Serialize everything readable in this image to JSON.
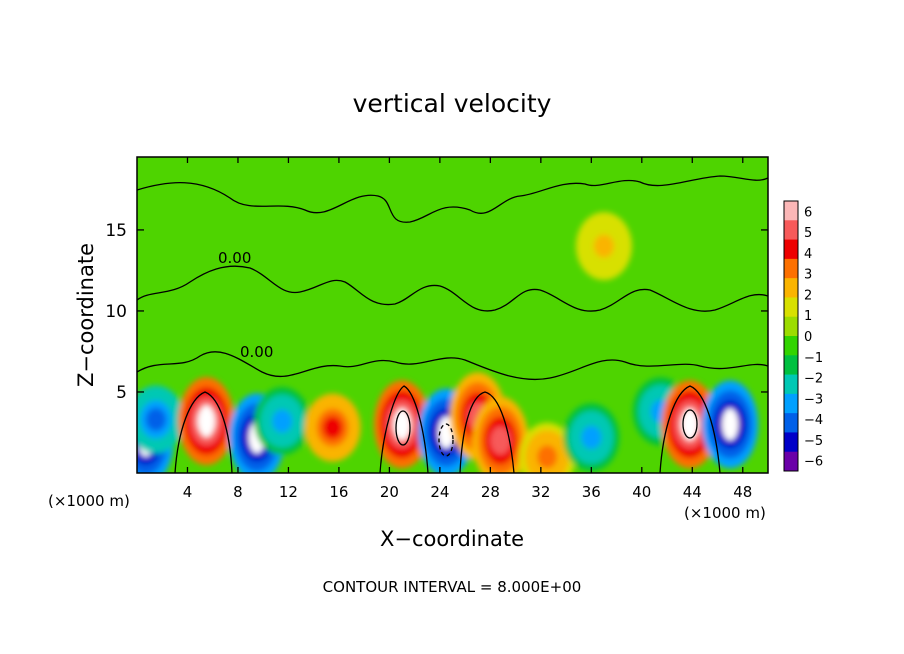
{
  "chart_data": {
    "type": "heatmap",
    "title": "vertical velocity",
    "xlabel": "X−coordinate",
    "ylabel": "Z−coordinate",
    "x_unit_left": "(×1000 m)",
    "x_unit_right": "(×1000 m)",
    "footer": "CONTOUR INTERVAL = 8.000E+00",
    "xlim": [
      0,
      50
    ],
    "ylim": [
      0,
      19.5
    ],
    "xticks": [
      4,
      8,
      12,
      16,
      20,
      24,
      28,
      32,
      36,
      40,
      44,
      48
    ],
    "xtick_labels": [
      "4",
      "8",
      "12",
      "16",
      "20",
      "24",
      "28",
      "32",
      "36",
      "40",
      "44",
      "48"
    ],
    "yticks": [
      5,
      10,
      15
    ],
    "ytick_labels": [
      "5",
      "10",
      "15"
    ],
    "colorbar": {
      "ticks": [
        "6",
        "5",
        "4",
        "3",
        "2",
        "1",
        "0",
        "−1",
        "−2",
        "−3",
        "−4",
        "−5",
        "−6"
      ],
      "colors": [
        "#fbb7b7",
        "#f75a5a",
        "#ee0000",
        "#fd7000",
        "#fab400",
        "#d8e000",
        "#9cdc00",
        "#32d400",
        "#00c040",
        "#00c8b4",
        "#00a0ff",
        "#0060e8",
        "#0000c8",
        "#6a00a8"
      ]
    },
    "contour_labels": [
      "0.00",
      "0.00"
    ],
    "cells": [
      {
        "x": 0.7,
        "z": 2.0,
        "w": -6
      },
      {
        "x": 1.5,
        "z": 3.3,
        "w": -4
      },
      {
        "x": 5.5,
        "z": 3.2,
        "w": 6
      },
      {
        "x": 9.5,
        "z": 2.2,
        "w": -6
      },
      {
        "x": 11.5,
        "z": 3.2,
        "w": -3
      },
      {
        "x": 15.5,
        "z": 2.8,
        "w": 4
      },
      {
        "x": 21.0,
        "z": 3.0,
        "w": 6
      },
      {
        "x": 24.5,
        "z": 2.5,
        "w": -6
      },
      {
        "x": 27.0,
        "z": 3.5,
        "w": 5
      },
      {
        "x": 28.8,
        "z": 2.0,
        "w": 5
      },
      {
        "x": 32.5,
        "z": 1.0,
        "w": 3
      },
      {
        "x": 36.0,
        "z": 2.2,
        "w": -3
      },
      {
        "x": 41.5,
        "z": 3.8,
        "w": -3
      },
      {
        "x": 43.8,
        "z": 3.0,
        "w": 6
      },
      {
        "x": 47.0,
        "z": 3.0,
        "w": -6
      },
      {
        "x": 37.0,
        "z": 14.0,
        "w": 2
      }
    ]
  }
}
